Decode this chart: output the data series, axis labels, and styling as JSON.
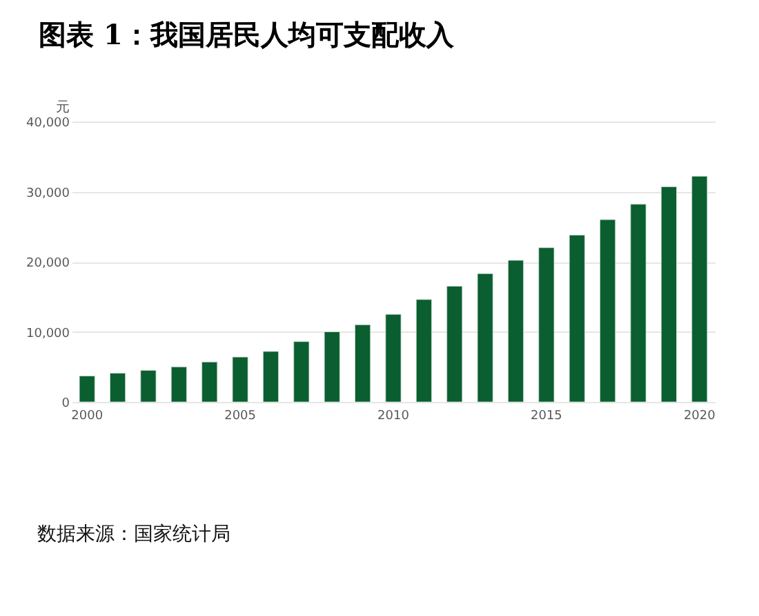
{
  "chart_data": {
    "type": "bar",
    "title": "图表 1：我国居民人均可支配收入",
    "ylabel": "元",
    "categories": [
      "2000",
      null,
      null,
      null,
      null,
      "2005",
      null,
      null,
      null,
      null,
      "2010",
      null,
      null,
      null,
      null,
      "2015",
      null,
      null,
      null,
      null,
      "2020"
    ],
    "values": [
      3700,
      4100,
      4500,
      5000,
      5700,
      6400,
      7200,
      8600,
      10000,
      11000,
      12500,
      14600,
      16500,
      18300,
      20200,
      22000,
      23800,
      26000,
      28200,
      30700,
      32200
    ],
    "color": "#0b5e2f",
    "ylim": [
      0,
      40000
    ],
    "yticks": [
      0,
      {
        "value": 10000,
        "label": "10,000"
      },
      {
        "value": 20000,
        "label": "20,000"
      },
      {
        "value": 30000,
        "label": "30,000"
      },
      {
        "value": 40000,
        "label": "40,000"
      }
    ],
    "grid": "y",
    "annotations": [
      "数据来源：国家统计局"
    ]
  }
}
